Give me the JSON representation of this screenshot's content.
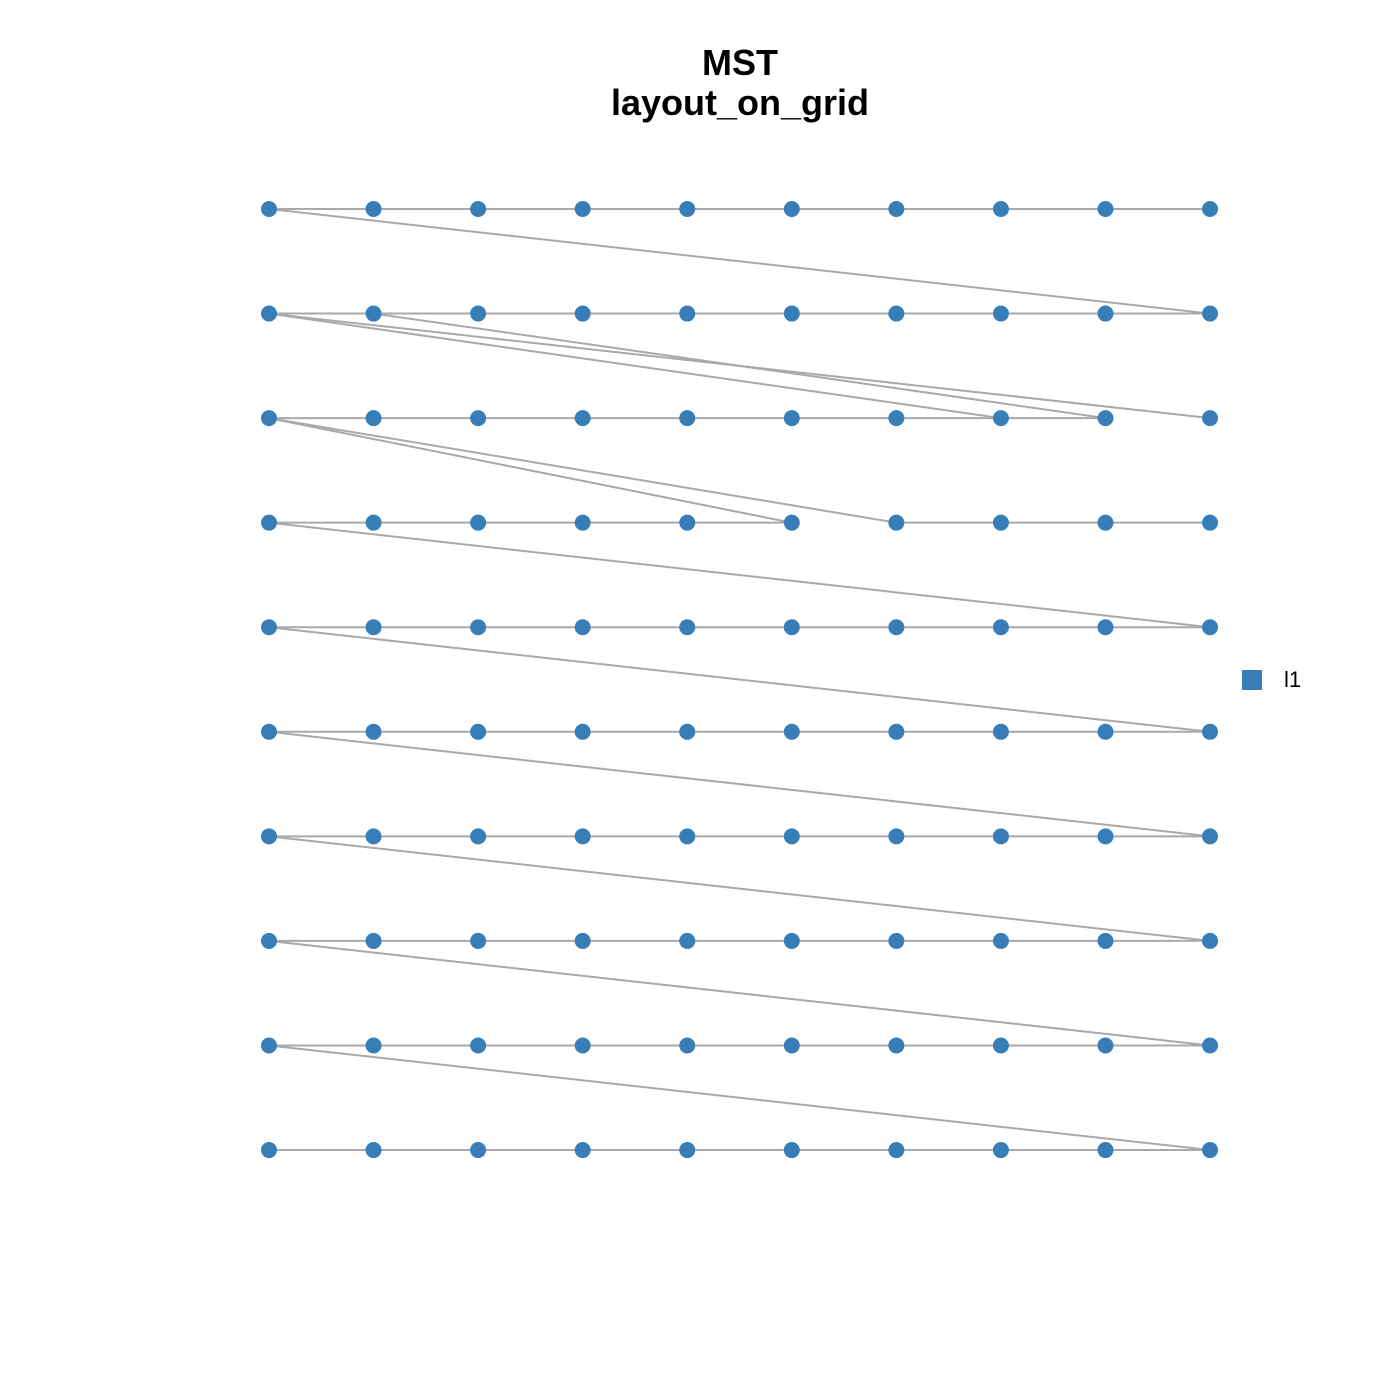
{
  "title": {
    "line1": "MST",
    "line2": "layout_on_grid"
  },
  "legend": {
    "label": "l1"
  }
}
